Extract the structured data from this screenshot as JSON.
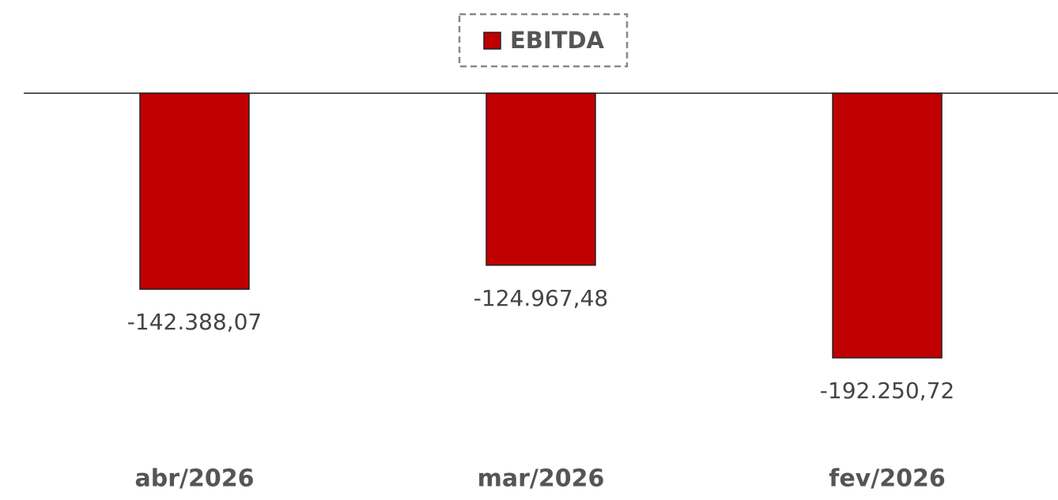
{
  "chart_data": {
    "type": "bar",
    "categories": [
      "abr/2026",
      "mar/2026",
      "fev/2026"
    ],
    "series": [
      {
        "name": "EBITDA",
        "color": "#c00000",
        "values": [
          -142388.07,
          -124967.48,
          -192250.72
        ],
        "value_labels": [
          "-142.388,07",
          "-124.967,48",
          "-192.250,72"
        ]
      }
    ],
    "legend": "top"
  }
}
